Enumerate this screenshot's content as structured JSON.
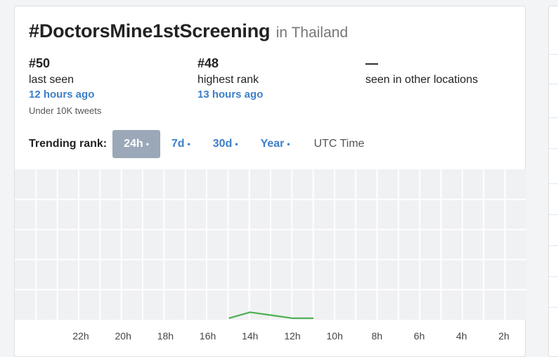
{
  "header": {
    "hashtag": "#DoctorsMine1stScreening",
    "location": "in Thailand"
  },
  "stats": [
    {
      "value": "#50",
      "label": "last seen",
      "time": "12 hours ago",
      "note": "Under 10K tweets"
    },
    {
      "value": "#48",
      "label": "highest rank",
      "time": "13 hours ago"
    },
    {
      "value": "—",
      "label": "seen in other locations"
    }
  ],
  "range": {
    "label": "Trending rank:",
    "options": [
      {
        "label": "24h",
        "active": true
      },
      {
        "label": "7d",
        "active": false
      },
      {
        "label": "30d",
        "active": false
      },
      {
        "label": "Year",
        "active": false
      }
    ],
    "dot": "•",
    "timezone": "UTC Time"
  },
  "chart_data": {
    "type": "line",
    "x": [
      "15h",
      "14h",
      "13h",
      "12h",
      "11h"
    ],
    "series": [
      {
        "values": [
          50,
          48,
          49,
          50,
          50
        ]
      }
    ],
    "x_tick_labels": [
      "22h",
      "20h",
      "18h",
      "16h",
      "14h",
      "12h",
      "10h",
      "8h",
      "6h",
      "4h",
      "2h"
    ],
    "grid": true,
    "colors": {
      "line": "#4caf50",
      "grid_bg": "#f0f1f3",
      "grid_line": "#ffffff"
    }
  }
}
